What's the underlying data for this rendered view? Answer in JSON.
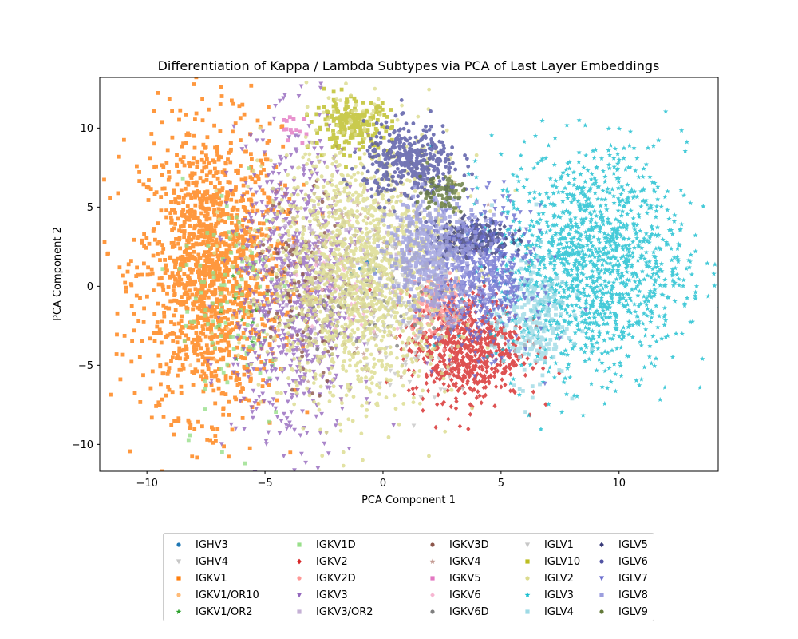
{
  "chart_data": {
    "type": "scatter",
    "title": "Differentiation of Kappa / Lambda Subtypes via PCA of Last Layer Embeddings",
    "xlabel": "PCA Component 1",
    "ylabel": "PCA Component 2",
    "xlim": [
      -12,
      14.2
    ],
    "ylim": [
      -11.7,
      13.2
    ],
    "xticks": [
      -10,
      -5,
      0,
      5,
      10
    ],
    "yticks": [
      -10,
      -5,
      0,
      5,
      10
    ],
    "grid": false,
    "legend_position": "bottom-outside",
    "legend_columns": 5,
    "series": [
      {
        "name": "IGHV3",
        "marker": "circle",
        "color": "#1f77b4",
        "center": [
          -0.5,
          1.0
        ],
        "spread": [
          0.4,
          0.4
        ],
        "count": 10
      },
      {
        "name": "IGHV4",
        "marker": "triangle-down",
        "color": "#c7c7c7",
        "center": [
          1.5,
          0.5
        ],
        "spread": [
          1.2,
          2.5
        ],
        "count": 120
      },
      {
        "name": "IGKV1",
        "marker": "square",
        "color": "#ff7f0e",
        "center": [
          -7.3,
          1.0
        ],
        "spread": [
          1.5,
          4.5
        ],
        "count": 1500
      },
      {
        "name": "IGKV1/OR10",
        "marker": "circle",
        "color": "#ffbb78",
        "center": [
          -5.5,
          -2.0
        ],
        "spread": [
          0.8,
          2.0
        ],
        "count": 20
      },
      {
        "name": "IGKV1/OR2",
        "marker": "star",
        "color": "#2ca02c",
        "center": [
          -6.0,
          -1.0
        ],
        "spread": [
          0.6,
          1.5
        ],
        "count": 10
      },
      {
        "name": "IGKV1D",
        "marker": "square",
        "color": "#98df8a",
        "center": [
          -6.2,
          -1.0
        ],
        "spread": [
          1.2,
          4.0
        ],
        "count": 120
      },
      {
        "name": "IGKV2",
        "marker": "diamond",
        "color": "#d62728",
        "center": [
          3.5,
          -3.8
        ],
        "spread": [
          1.2,
          1.7
        ],
        "count": 700
      },
      {
        "name": "IGKV2D",
        "marker": "circle",
        "color": "#ff9896",
        "center": [
          2.2,
          -1.0
        ],
        "spread": [
          0.6,
          1.0
        ],
        "count": 150
      },
      {
        "name": "IGKV3",
        "marker": "triangle-down",
        "color": "#9467bd",
        "center": [
          -3.7,
          -0.5
        ],
        "spread": [
          1.3,
          4.8
        ],
        "count": 900
      },
      {
        "name": "IGKV3/OR2",
        "marker": "square",
        "color": "#c5b0d5",
        "center": [
          -2.0,
          1.0
        ],
        "spread": [
          1.0,
          2.0
        ],
        "count": 60
      },
      {
        "name": "IGKV3D",
        "marker": "circle",
        "color": "#8c564b",
        "center": [
          -3.5,
          0.0
        ],
        "spread": [
          1.0,
          3.0
        ],
        "count": 80
      },
      {
        "name": "IGKV4",
        "marker": "star",
        "color": "#c49c94",
        "center": [
          -0.5,
          1.0
        ],
        "spread": [
          2.0,
          3.0
        ],
        "count": 100
      },
      {
        "name": "IGKV5",
        "marker": "square",
        "color": "#e377c2",
        "center": [
          -3.7,
          10.0
        ],
        "spread": [
          0.4,
          0.4
        ],
        "count": 15
      },
      {
        "name": "IGKV6",
        "marker": "diamond",
        "color": "#f7b6d2",
        "center": [
          -1.5,
          0.5
        ],
        "spread": [
          1.0,
          2.0
        ],
        "count": 40
      },
      {
        "name": "IGKV6D",
        "marker": "circle",
        "color": "#7f7f7f",
        "center": [
          -0.5,
          -1.0
        ],
        "spread": [
          1.5,
          2.0
        ],
        "count": 40
      },
      {
        "name": "IGLV1",
        "marker": "triangle-down",
        "color": "#c7c7c7",
        "center": [
          1.0,
          0.0
        ],
        "spread": [
          1.5,
          3.0
        ],
        "count": 250
      },
      {
        "name": "IGLV10",
        "marker": "square",
        "color": "#bcbd22",
        "center": [
          -1.3,
          10.2
        ],
        "spread": [
          0.8,
          0.8
        ],
        "count": 220
      },
      {
        "name": "IGLV2",
        "marker": "circle",
        "color": "#dbdb8d",
        "center": [
          -1.0,
          1.0
        ],
        "spread": [
          2.0,
          4.2
        ],
        "count": 1600
      },
      {
        "name": "IGLV3",
        "marker": "star",
        "color": "#17becf",
        "center": [
          8.8,
          1.5
        ],
        "spread": [
          2.0,
          3.5
        ],
        "count": 1400
      },
      {
        "name": "IGLV4",
        "marker": "square",
        "color": "#9edae5",
        "center": [
          6.2,
          -2.0
        ],
        "spread": [
          0.8,
          2.0
        ],
        "count": 250
      },
      {
        "name": "IGLV5",
        "marker": "diamond",
        "color": "#393b79",
        "center": [
          3.8,
          3.0
        ],
        "spread": [
          0.8,
          0.6
        ],
        "count": 250
      },
      {
        "name": "IGLV6",
        "marker": "circle",
        "color": "#5254a3",
        "center": [
          1.2,
          7.8
        ],
        "spread": [
          1.0,
          1.2
        ],
        "count": 400
      },
      {
        "name": "IGLV7",
        "marker": "triangle-down",
        "color": "#6b6ecf",
        "center": [
          4.3,
          0.5
        ],
        "spread": [
          1.0,
          2.2
        ],
        "count": 500
      },
      {
        "name": "IGLV8",
        "marker": "square",
        "color": "#9c9ede",
        "center": [
          2.2,
          2.0
        ],
        "spread": [
          1.0,
          1.8
        ],
        "count": 450
      },
      {
        "name": "IGLV9",
        "marker": "circle",
        "color": "#637939",
        "center": [
          2.5,
          6.0
        ],
        "spread": [
          0.5,
          0.6
        ],
        "count": 80
      }
    ]
  }
}
